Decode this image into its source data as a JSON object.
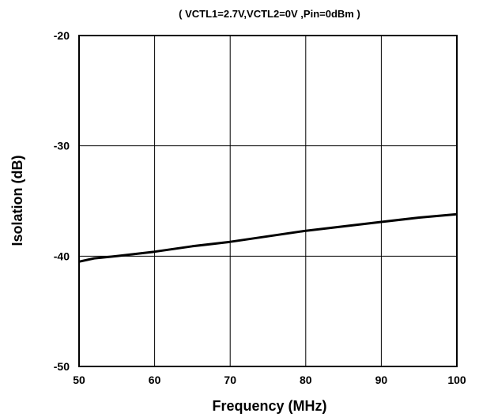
{
  "chart_data": {
    "type": "line",
    "title": "( VCTL1=2.7V,VCTL2=0V ,Pin=0dBm )",
    "xlabel": "Frequency (MHz)",
    "ylabel": "Isolation (dB)",
    "xlim": [
      50,
      100
    ],
    "ylim": [
      -50,
      -20
    ],
    "x_ticks": [
      "50",
      "60",
      "70",
      "80",
      "90",
      "100"
    ],
    "y_ticks": [
      "-20",
      "-30",
      "-40",
      "-50"
    ],
    "grid": true,
    "series": [
      {
        "x": [
          50,
          52,
          55,
          60,
          65,
          70,
          75,
          80,
          85,
          90,
          95,
          100
        ],
        "y": [
          -40.5,
          -40.2,
          -40.0,
          -39.6,
          -39.1,
          -38.7,
          -38.2,
          -37.7,
          -37.3,
          -36.9,
          -36.5,
          -36.2
        ]
      }
    ]
  }
}
